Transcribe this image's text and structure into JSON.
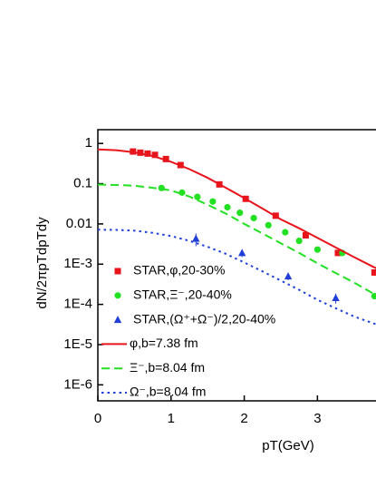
{
  "chart_data": {
    "type": "line",
    "x_label": "pT(GeV)",
    "y_label": "dN/2πpTdpTdy",
    "xlim": [
      0,
      3.8
    ],
    "ylim": [
      4e-07,
      2.2
    ],
    "log_y": true,
    "xticks": [
      0,
      1,
      2,
      3
    ],
    "yticks": [
      1,
      0.1,
      0.01,
      {
        "value": 0.001,
        "label": "1E-3"
      },
      {
        "value": 0.0001,
        "label": "1E-4"
      },
      {
        "value": 1e-05,
        "label": "1E-5"
      },
      {
        "value": 1e-06,
        "label": "1E-6"
      }
    ],
    "x": [
      0,
      0.25,
      0.5,
      0.75,
      1,
      1.25,
      1.5,
      1.75,
      2,
      2.25,
      2.5,
      2.75,
      3,
      3.25,
      3.5,
      3.8
    ],
    "series": [
      {
        "name": "STAR,φ,20-30%",
        "color": "#e8141c",
        "style": "square",
        "x": [
          0.48,
          0.58,
          0.68,
          0.78,
          0.93,
          1.13,
          1.66,
          2.02,
          2.43,
          2.84,
          3.28,
          3.78
        ],
        "values": [
          0.63,
          0.59,
          0.56,
          0.52,
          0.41,
          0.29,
          0.096,
          0.042,
          0.016,
          0.0052,
          0.0019,
          0.00062
        ]
      },
      {
        "name": "STAR,Ξ⁻,20-40%",
        "color": "#22e022",
        "style": "circle",
        "x": [
          0.87,
          1.15,
          1.36,
          1.57,
          1.77,
          1.94,
          2.13,
          2.33,
          2.56,
          2.75,
          3.0,
          3.34,
          3.78
        ],
        "values": [
          0.078,
          0.06,
          0.047,
          0.036,
          0.026,
          0.019,
          0.014,
          0.0093,
          0.0062,
          0.0038,
          0.0023,
          0.0019,
          0.00016
        ]
      },
      {
        "name": "STAR,(Ω⁺+Ω⁻)/2,20-40%",
        "color": "#1f3fd8",
        "style": "triangle",
        "x": [
          1.34,
          1.97,
          2.6,
          3.25
        ],
        "values": [
          0.0043,
          0.0019,
          0.0005,
          0.000145
        ],
        "errors": [
          0.0015,
          0.0004,
          0.0001,
          4e-05
        ]
      },
      {
        "name": "φ,b=7.38 fm",
        "color": "#e8141c",
        "style": "solid",
        "values": [
          0.71,
          0.68,
          0.6,
          0.49,
          0.35,
          0.23,
          0.14,
          0.079,
          0.044,
          0.024,
          0.013,
          0.0078,
          0.0045,
          0.0026,
          0.0015,
          0.00079
        ]
      },
      {
        "name": "Ξ⁻,b=8.04 fm",
        "color": "#22e022",
        "style": "dashed",
        "values": [
          0.095,
          0.093,
          0.089,
          0.079,
          0.068,
          0.048,
          0.03,
          0.018,
          0.01,
          0.0058,
          0.0033,
          0.0019,
          0.00105,
          0.0006,
          0.00035,
          0.00017
        ]
      },
      {
        "name": "Ω⁻,b=8.04 fm",
        "color": "#1f3fd8",
        "style": "dotted",
        "values": [
          0.0072,
          0.0071,
          0.0068,
          0.006,
          0.005,
          0.0038,
          0.0027,
          0.0018,
          0.0011,
          0.00066,
          0.00039,
          0.00023,
          0.00013,
          8e-05,
          5e-05,
          3.2e-05
        ]
      }
    ]
  }
}
